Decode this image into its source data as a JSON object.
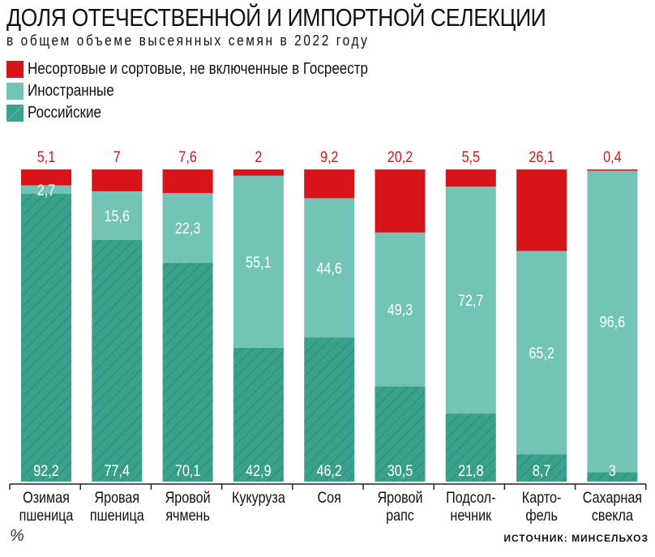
{
  "chart_data": {
    "type": "bar",
    "stacked": true,
    "title": "ДОЛЯ ОТЕЧЕСТВЕННОЙ И ИМПОРТНОЙ СЕЛЕКЦИИ",
    "subtitle": "в общем объеме высеянных семян в 2022 году",
    "unit_label": "%",
    "legend_position": "top-left",
    "categories": [
      [
        "Озимая",
        "пшеница"
      ],
      [
        "Яровая",
        "пшеница"
      ],
      [
        "Яровой",
        "ячмень"
      ],
      [
        "Кукуруза",
        ""
      ],
      [
        "Соя",
        ""
      ],
      [
        "Яровой",
        "рапс"
      ],
      [
        "Подсол-",
        "нечник"
      ],
      [
        "Карто-",
        "фель"
      ],
      [
        "Сахарная",
        "свекла"
      ]
    ],
    "series": [
      {
        "name": "Российские",
        "color": "#3aa18d",
        "hatched": true,
        "values": [
          92.2,
          77.4,
          70.1,
          42.9,
          46.2,
          30.5,
          21.8,
          8.7,
          3
        ],
        "labels": [
          "92,2",
          "77,4",
          "70,1",
          "42,9",
          "46,2",
          "30,5",
          "21,8",
          "8,7",
          "3"
        ]
      },
      {
        "name": "Иностранные",
        "color": "#72c4b7",
        "values": [
          2.7,
          15.6,
          22.3,
          55.1,
          44.6,
          49.3,
          72.7,
          65.2,
          96.6
        ],
        "labels": [
          "2,7",
          "15,6",
          "22,3",
          "55,1",
          "44,6",
          "49,3",
          "72,7",
          "65,2",
          "96,6"
        ]
      },
      {
        "name": "Несортовые и сортовые, не включенные в Госреестр",
        "color": "#d7141a",
        "values": [
          5.1,
          7,
          7.6,
          2,
          9.2,
          20.2,
          5.5,
          26.1,
          0.4
        ],
        "labels": [
          "5,1",
          "7",
          "7,6",
          "2",
          "9,2",
          "20,2",
          "5,5",
          "26,1",
          "0,4"
        ]
      }
    ],
    "ylim": [
      0,
      100
    ],
    "grid": false,
    "source": "ИСТОЧНИК: МИНСЕЛЬХОЗ"
  }
}
